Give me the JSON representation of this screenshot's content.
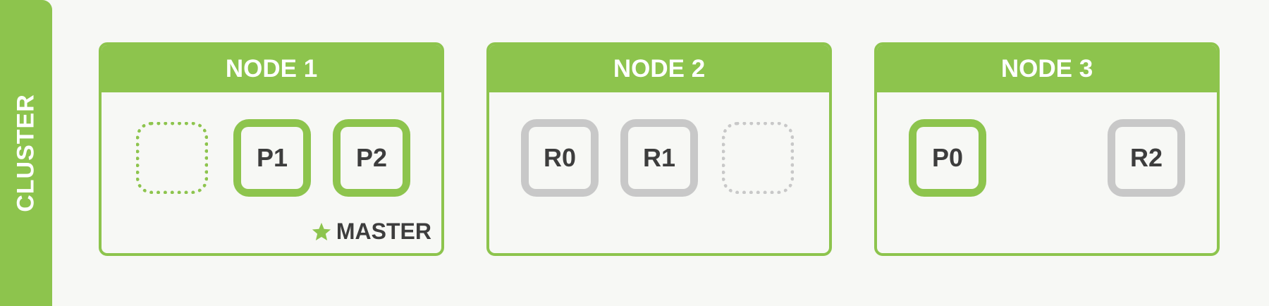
{
  "cluster": {
    "label": "CLUSTER"
  },
  "nodes": [
    {
      "title": "NODE 1",
      "master_label": "MASTER",
      "shards": [
        {
          "kind": "empty",
          "label": ""
        },
        {
          "kind": "primary",
          "label": "P1"
        },
        {
          "kind": "primary",
          "label": "P2"
        }
      ]
    },
    {
      "title": "NODE 2",
      "shards": [
        {
          "kind": "replica",
          "label": "R0"
        },
        {
          "kind": "replica",
          "label": "R1"
        },
        {
          "kind": "empty",
          "label": ""
        }
      ]
    },
    {
      "title": "NODE 3",
      "shards": [
        {
          "kind": "primary",
          "label": "P0"
        },
        {
          "kind": "replica",
          "label": "R2"
        }
      ]
    }
  ],
  "colors": {
    "primary": "#8dc44d",
    "replica": "#c8c8c8",
    "text": "#3d3d3d",
    "background": "#f7f8f5"
  },
  "icons": {
    "master": "star-icon"
  }
}
